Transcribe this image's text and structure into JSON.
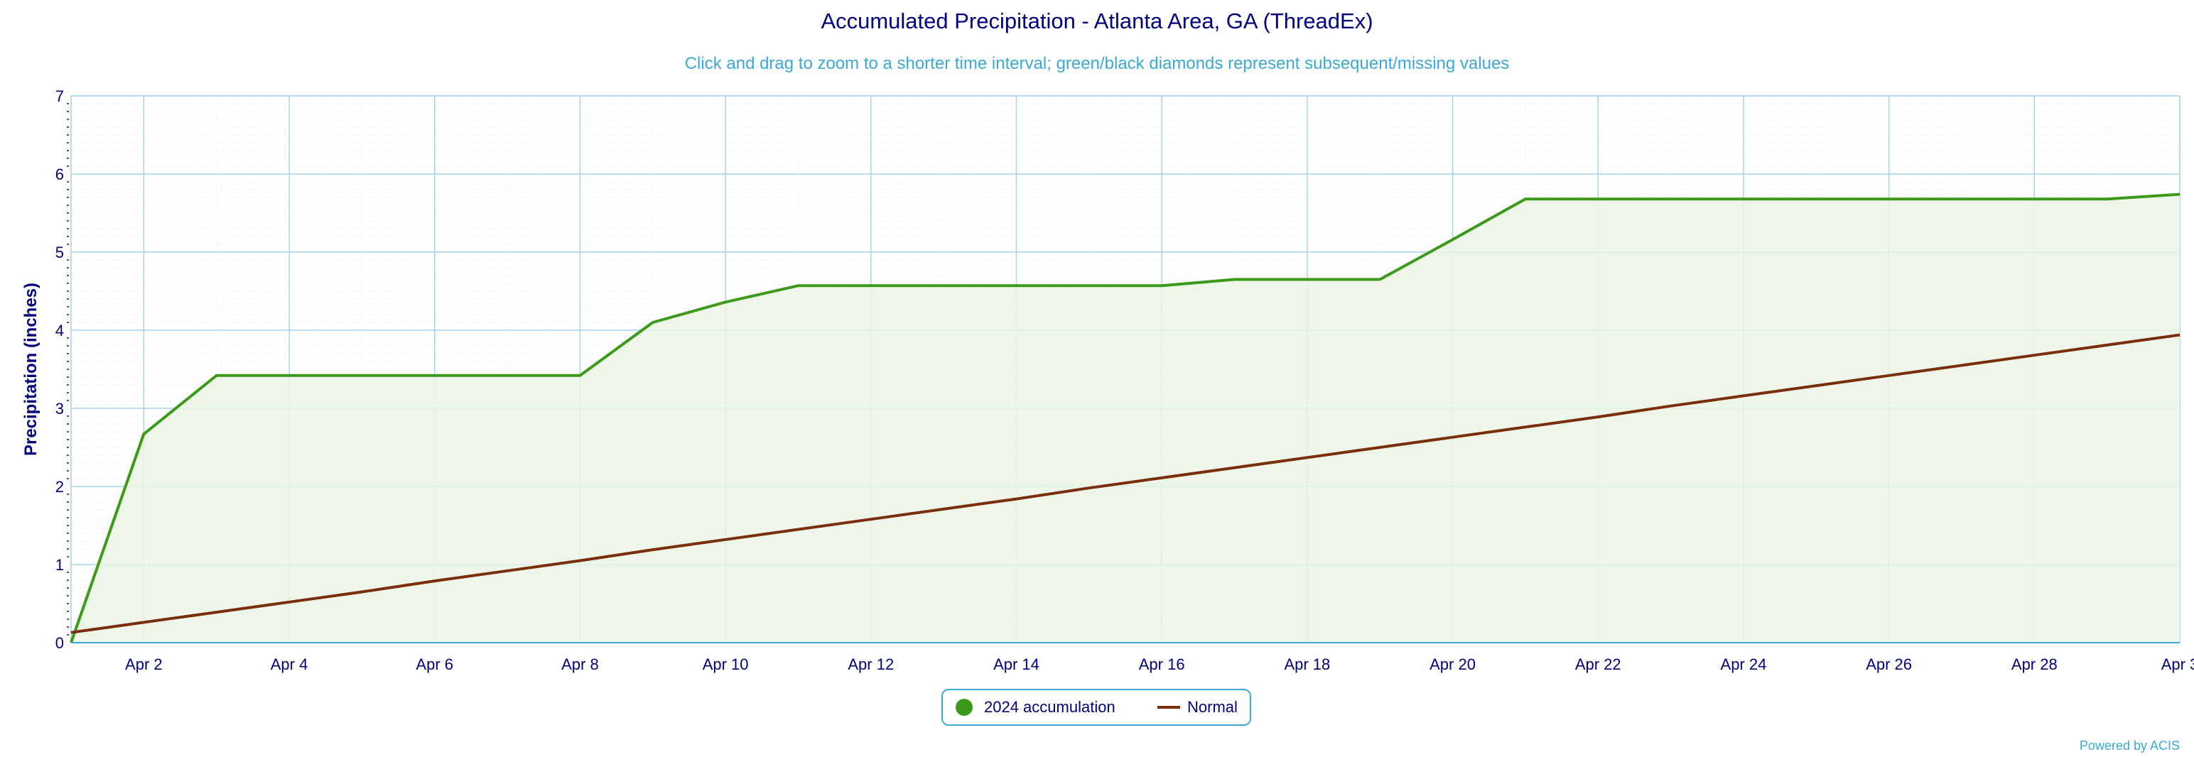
{
  "chart_data": {
    "type": "line",
    "title": "Accumulated Precipitation - Atlanta Area, GA (ThreadEx)",
    "subtitle": "Click and drag to zoom to a shorter time interval; green/black diamonds represent subsequent/missing values",
    "xlabel": "",
    "ylabel": "Precipitation (inches)",
    "x": [
      "2024-04-01",
      "2024-04-02",
      "2024-04-03",
      "2024-04-04",
      "2024-04-05",
      "2024-04-06",
      "2024-04-07",
      "2024-04-08",
      "2024-04-09",
      "2024-04-10",
      "2024-04-11",
      "2024-04-12",
      "2024-04-13",
      "2024-04-14",
      "2024-04-15",
      "2024-04-16",
      "2024-04-17",
      "2024-04-18",
      "2024-04-19",
      "2024-04-20",
      "2024-04-21",
      "2024-04-22",
      "2024-04-23",
      "2024-04-24",
      "2024-04-25",
      "2024-04-26",
      "2024-04-27",
      "2024-04-28",
      "2024-04-29",
      "2024-04-30"
    ],
    "x_tick_labels": [
      "Apr 2",
      "Apr 4",
      "Apr 6",
      "Apr 8",
      "Apr 10",
      "Apr 12",
      "Apr 14",
      "Apr 16",
      "Apr 18",
      "Apr 20",
      "Apr 22",
      "Apr 24",
      "Apr 26",
      "Apr 28",
      "Apr 3"
    ],
    "y_ticks": [
      "0",
      "1",
      "2",
      "3",
      "4",
      "5",
      "6",
      "7"
    ],
    "ylim": [
      0,
      7
    ],
    "grid": true,
    "legend_position": "bottom-center",
    "series": [
      {
        "name": "2024 accumulation",
        "color": "#3c9a1a",
        "fill": "#eaf4e4",
        "values": [
          0.0,
          2.67,
          3.42,
          3.42,
          3.42,
          3.42,
          3.42,
          3.42,
          4.1,
          4.36,
          4.57,
          4.57,
          4.57,
          4.57,
          4.57,
          4.57,
          4.65,
          4.65,
          4.65,
          5.16,
          5.68,
          5.68,
          5.68,
          5.68,
          5.68,
          5.68,
          5.68,
          5.68,
          5.68,
          5.74
        ]
      },
      {
        "name": "Normal",
        "color": "#7a2e0c",
        "values": [
          0.13,
          0.26,
          0.39,
          0.52,
          0.65,
          0.79,
          0.92,
          1.05,
          1.19,
          1.32,
          1.45,
          1.58,
          1.71,
          1.84,
          1.98,
          2.11,
          2.24,
          2.37,
          2.5,
          2.63,
          2.76,
          2.89,
          3.03,
          3.16,
          3.29,
          3.42,
          3.55,
          3.68,
          3.81,
          3.94
        ]
      }
    ]
  },
  "legend": {
    "items": [
      "2024 accumulation",
      "Normal"
    ]
  },
  "credit": "Powered by ACIS"
}
